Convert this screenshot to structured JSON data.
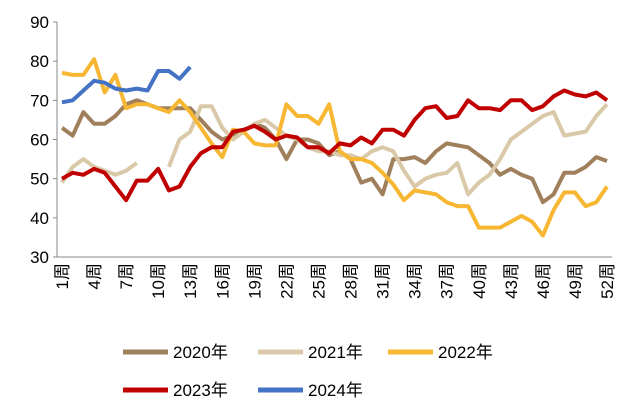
{
  "chart_data": {
    "type": "line",
    "categories": [
      "1周",
      null,
      null,
      "4周",
      null,
      null,
      "7周",
      null,
      null,
      "10周",
      null,
      null,
      "13周",
      null,
      null,
      "16周",
      null,
      null,
      "19周",
      null,
      null,
      "22周",
      null,
      null,
      "25周",
      null,
      null,
      "28周",
      null,
      null,
      "31周",
      null,
      null,
      "34周",
      null,
      null,
      "37周",
      null,
      null,
      "40周",
      null,
      null,
      "43周",
      null,
      null,
      "46周",
      null,
      null,
      "49周",
      null,
      null,
      "52周"
    ],
    "series": [
      {
        "name": "2020年",
        "color": "#a0805c",
        "values": [
          63,
          61,
          67,
          64,
          64,
          66,
          69,
          70,
          69,
          68,
          68,
          68,
          68,
          65,
          62,
          60,
          61,
          62,
          64,
          63,
          60,
          55,
          60,
          60,
          59,
          56,
          57,
          55,
          49,
          50,
          46,
          55,
          55,
          55.5,
          54,
          57,
          59,
          58.5,
          58,
          56,
          54,
          51,
          52.5,
          51,
          50,
          44,
          46,
          51.5,
          51.5,
          53,
          55.5,
          54.5
        ]
      },
      {
        "name": "2021年",
        "color": "#d9c9a9",
        "values": [
          49,
          53,
          55,
          53,
          52,
          51,
          52,
          54,
          null,
          null,
          53,
          60,
          62,
          68.5,
          68.5,
          63,
          60,
          62,
          64,
          65,
          63,
          61,
          60,
          58,
          57,
          57,
          56,
          56,
          55,
          57,
          58,
          57,
          52,
          48,
          50,
          51,
          51.5,
          54,
          46,
          49,
          51,
          55,
          60,
          62,
          64,
          66,
          67,
          61,
          61.5,
          62,
          66,
          69
        ]
      },
      {
        "name": "2022年",
        "color": "#f7b733",
        "values": [
          77,
          76.5,
          76.5,
          80.5,
          72,
          76.5,
          68,
          69,
          69,
          68,
          67,
          70,
          67,
          63,
          59,
          55.5,
          62.5,
          62,
          59,
          58.5,
          58.5,
          69,
          66,
          66,
          64,
          69,
          57,
          55,
          55,
          54,
          51.5,
          48.5,
          44.5,
          47,
          46.5,
          46,
          44,
          43,
          43,
          37.5,
          37.5,
          37.5,
          39,
          40.5,
          39,
          35.5,
          42,
          46.5,
          46.5,
          43,
          44,
          48
        ]
      },
      {
        "name": "2023年",
        "color": "#c00000",
        "values": [
          50,
          51.5,
          51,
          52.5,
          51.5,
          48,
          44.5,
          49.5,
          49.5,
          52.5,
          47,
          48,
          53,
          56.5,
          58,
          58,
          62,
          62.5,
          63.5,
          62,
          60,
          61,
          60.5,
          58,
          58,
          56.5,
          59,
          58.5,
          60.5,
          59,
          62.5,
          62.5,
          61,
          65,
          68,
          68.5,
          65.5,
          66,
          70,
          68,
          68,
          67.5,
          70,
          70,
          67.5,
          68.5,
          71,
          72.5,
          71.5,
          71,
          72,
          70
        ]
      },
      {
        "name": "2024年",
        "color": "#4472c4",
        "values": [
          69.5,
          70,
          72.5,
          75,
          74.5,
          73,
          72.5,
          73,
          72.5,
          77.5,
          77.5,
          75.5,
          78.5,
          null,
          null,
          null,
          null,
          null,
          null,
          null,
          null,
          null,
          null,
          null,
          null,
          null,
          null,
          null,
          null,
          null,
          null,
          null,
          null,
          null,
          null,
          null,
          null,
          null,
          null,
          null,
          null,
          null,
          null,
          null,
          null,
          null,
          null,
          null,
          null,
          null,
          null,
          null
        ]
      }
    ],
    "ylim": [
      30,
      90
    ],
    "yticks": [
      30,
      40,
      50,
      60,
      70,
      80,
      90
    ]
  }
}
